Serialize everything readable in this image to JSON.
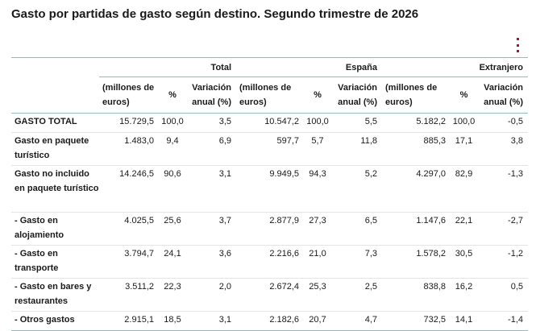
{
  "title": "Gasto por partidas de gasto según destino. Segundo trimestre de 2026",
  "menu_icon": "vertical-dots-icon",
  "accent_color": "#9b1c2e",
  "groups": [
    "Total",
    "España",
    "Extranjero"
  ],
  "subheaders": {
    "millones": "(millones de euros)",
    "pct": "%",
    "variacion": "Variación anual (%)"
  },
  "rows": [
    {
      "label": "GASTO TOTAL",
      "v": [
        "15.729,5",
        "100,0",
        "3,5",
        "10.547,2",
        "100,0",
        "5,5",
        "5.182,2",
        "100,0",
        "-0,5"
      ]
    },
    {
      "label": "Gasto en paquete turístico",
      "v": [
        "1.483,0",
        "9,4",
        "6,9",
        "597,7",
        "5,7",
        "11,8",
        "885,3",
        "17,1",
        "3,8"
      ]
    },
    {
      "label": "Gasto no incluido en paquete turístico",
      "v": [
        "14.246,5",
        "90,6",
        "3,1",
        "9.949,5",
        "94,3",
        "5,2",
        "4.297,0",
        "82,9",
        "-1,3"
      ]
    },
    {
      "label": "- Gasto en alojamiento",
      "v": [
        "4.025,5",
        "25,6",
        "3,7",
        "2.877,9",
        "27,3",
        "6,5",
        "1.147,6",
        "22,1",
        "-2,7"
      ]
    },
    {
      "label": "- Gasto en transporte",
      "v": [
        "3.794,7",
        "24,1",
        "3,6",
        "2.216,6",
        "21,0",
        "7,3",
        "1.578,2",
        "30,5",
        "-1,2"
      ]
    },
    {
      "label": "- Gasto en bares y restaurantes",
      "v": [
        "3.511,2",
        "22,3",
        "2,0",
        "2.672,4",
        "25,3",
        "2,5",
        "838,8",
        "16,2",
        "0,5"
      ]
    },
    {
      "label": "- Otros gastos",
      "v": [
        "2.915,1",
        "18,5",
        "3,1",
        "2.182,6",
        "20,7",
        "4,7",
        "732,5",
        "14,1",
        "-1,4"
      ]
    }
  ]
}
